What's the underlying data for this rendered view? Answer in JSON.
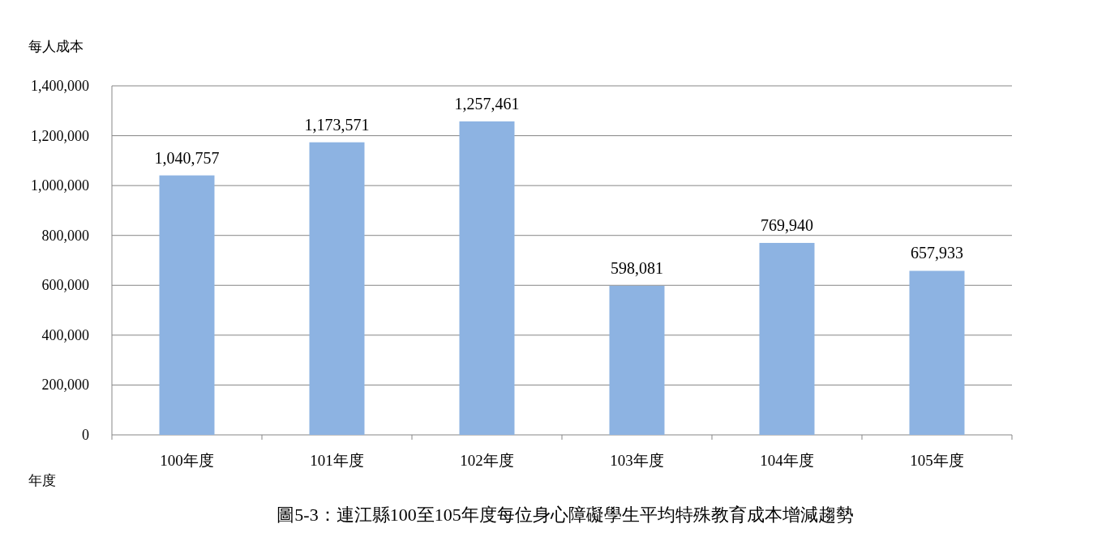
{
  "chart_data": {
    "type": "bar",
    "title": "圖5-3：連江縣100至105年度每位身心障礙學生平均特殊教育成本增減趨勢",
    "ylabel": "每人成本",
    "xlabel": "年度",
    "categories": [
      "100年度",
      "101年度",
      "102年度",
      "103年度",
      "104年度",
      "105年度"
    ],
    "values": [
      1040757,
      1173571,
      1257461,
      598081,
      769940,
      657933
    ],
    "color": "#8db3e2",
    "ylim": [
      0,
      1400000
    ],
    "yticks": [
      0,
      {
        "value": 200000,
        "label": "200,000"
      },
      {
        "value": 400000,
        "label": "400,000"
      },
      {
        "value": 600000,
        "label": "600,000"
      },
      {
        "value": 800000,
        "label": "800,000"
      },
      {
        "value": 1000000,
        "label": "1,000,000"
      },
      {
        "value": 1200000,
        "label": "1,200,000"
      },
      {
        "value": 1400000,
        "label": "1,400,000"
      }
    ],
    "value_labels": [
      "1,040,757",
      "1,173,571",
      "1,257,461",
      "598,081",
      "769,940",
      "657,933"
    ],
    "grid": "y"
  }
}
